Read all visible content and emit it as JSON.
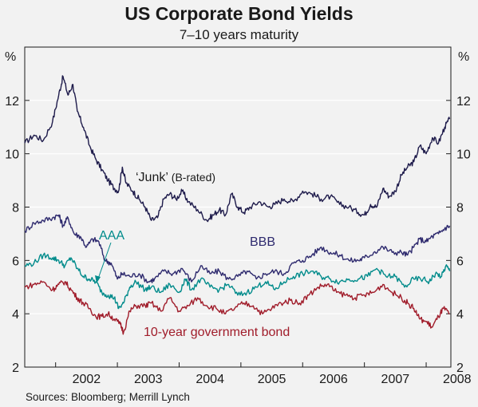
{
  "title": "US Corporate Bond Yields",
  "subtitle": "7–10 years maturity",
  "source": "Sources: Bloomberg; Merrill Lynch",
  "chart_data": {
    "type": "line",
    "y_unit_left": "%",
    "y_unit_right": "%",
    "ylim": [
      2,
      14
    ],
    "yticks": [
      2,
      4,
      6,
      8,
      10,
      12
    ],
    "xlim": [
      2001.5,
      2008.4
    ],
    "xticks": [
      {
        "label": "2002",
        "x": 2002.5
      },
      {
        "label": "2003",
        "x": 2003.5
      },
      {
        "label": "2004",
        "x": 2004.5
      },
      {
        "label": "2005",
        "x": 2005.5
      },
      {
        "label": "2006",
        "x": 2006.5
      },
      {
        "label": "2007",
        "x": 2007.5
      },
      {
        "label": "2008",
        "x": 2008.5
      }
    ],
    "grid": "horizontal",
    "series": [
      {
        "name": "‘Junk’ (B-rated)",
        "color": "#1e1b4b",
        "points": [
          [
            2001.5,
            10.4
          ],
          [
            2001.65,
            10.7
          ],
          [
            2001.8,
            10.5
          ],
          [
            2001.95,
            11.2
          ],
          [
            2002.05,
            12.2
          ],
          [
            2002.12,
            12.9
          ],
          [
            2002.2,
            12.2
          ],
          [
            2002.28,
            12.6
          ],
          [
            2002.35,
            11.6
          ],
          [
            2002.45,
            11.0
          ],
          [
            2002.55,
            10.3
          ],
          [
            2002.65,
            9.8
          ],
          [
            2002.75,
            9.4
          ],
          [
            2002.85,
            9.0
          ],
          [
            2002.95,
            8.7
          ],
          [
            2003.02,
            8.6
          ],
          [
            2003.08,
            9.5
          ],
          [
            2003.14,
            8.9
          ],
          [
            2003.25,
            8.6
          ],
          [
            2003.35,
            8.3
          ],
          [
            2003.45,
            8.0
          ],
          [
            2003.55,
            7.5
          ],
          [
            2003.65,
            7.6
          ],
          [
            2003.75,
            8.3
          ],
          [
            2003.85,
            8.5
          ],
          [
            2003.95,
            8.3
          ],
          [
            2004.05,
            8.6
          ],
          [
            2004.15,
            8.2
          ],
          [
            2004.3,
            7.9
          ],
          [
            2004.45,
            7.5
          ],
          [
            2004.55,
            7.7
          ],
          [
            2004.65,
            7.9
          ],
          [
            2004.75,
            7.7
          ],
          [
            2004.85,
            8.5
          ],
          [
            2004.95,
            8.0
          ],
          [
            2005.05,
            7.8
          ],
          [
            2005.15,
            8.0
          ],
          [
            2005.3,
            8.2
          ],
          [
            2005.45,
            8.0
          ],
          [
            2005.55,
            8.1
          ],
          [
            2005.7,
            8.3
          ],
          [
            2005.85,
            8.2
          ],
          [
            2006.0,
            8.6
          ],
          [
            2006.15,
            8.5
          ],
          [
            2006.3,
            8.3
          ],
          [
            2006.45,
            8.4
          ],
          [
            2006.6,
            8.1
          ],
          [
            2006.75,
            8.0
          ],
          [
            2006.9,
            7.8
          ],
          [
            2007.0,
            7.7
          ],
          [
            2007.1,
            8.1
          ],
          [
            2007.2,
            8.0
          ],
          [
            2007.3,
            8.7
          ],
          [
            2007.4,
            8.4
          ],
          [
            2007.5,
            8.6
          ],
          [
            2007.6,
            9.2
          ],
          [
            2007.7,
            9.5
          ],
          [
            2007.8,
            9.7
          ],
          [
            2007.9,
            10.3
          ],
          [
            2008.0,
            10.0
          ],
          [
            2008.1,
            10.6
          ],
          [
            2008.2,
            10.4
          ],
          [
            2008.3,
            11.0
          ],
          [
            2008.38,
            11.3
          ]
        ]
      },
      {
        "name": "BBB",
        "color": "#2e2a6e",
        "points": [
          [
            2001.5,
            7.1
          ],
          [
            2001.65,
            7.4
          ],
          [
            2001.8,
            7.5
          ],
          [
            2001.95,
            7.6
          ],
          [
            2002.05,
            7.7
          ],
          [
            2002.12,
            7.3
          ],
          [
            2002.2,
            7.6
          ],
          [
            2002.3,
            7.0
          ],
          [
            2002.4,
            6.9
          ],
          [
            2002.5,
            6.5
          ],
          [
            2002.6,
            6.8
          ],
          [
            2002.7,
            6.7
          ],
          [
            2002.8,
            6.0
          ],
          [
            2002.9,
            5.9
          ],
          [
            2003.0,
            5.3
          ],
          [
            2003.08,
            5.5
          ],
          [
            2003.2,
            5.4
          ],
          [
            2003.35,
            5.5
          ],
          [
            2003.5,
            5.2
          ],
          [
            2003.6,
            5.3
          ],
          [
            2003.75,
            5.6
          ],
          [
            2003.9,
            5.5
          ],
          [
            2004.05,
            5.7
          ],
          [
            2004.2,
            5.2
          ],
          [
            2004.35,
            5.8
          ],
          [
            2004.5,
            5.5
          ],
          [
            2004.65,
            5.6
          ],
          [
            2004.8,
            5.3
          ],
          [
            2004.95,
            5.4
          ],
          [
            2005.1,
            5.6
          ],
          [
            2005.25,
            5.3
          ],
          [
            2005.4,
            5.5
          ],
          [
            2005.55,
            5.6
          ],
          [
            2005.7,
            5.5
          ],
          [
            2005.85,
            5.9
          ],
          [
            2006.0,
            6.0
          ],
          [
            2006.15,
            6.2
          ],
          [
            2006.3,
            6.5
          ],
          [
            2006.45,
            6.3
          ],
          [
            2006.6,
            6.2
          ],
          [
            2006.75,
            6.0
          ],
          [
            2006.9,
            6.0
          ],
          [
            2007.0,
            6.1
          ],
          [
            2007.15,
            6.3
          ],
          [
            2007.3,
            6.5
          ],
          [
            2007.45,
            6.3
          ],
          [
            2007.6,
            6.3
          ],
          [
            2007.7,
            6.2
          ],
          [
            2007.8,
            6.5
          ],
          [
            2007.9,
            6.8
          ],
          [
            2008.0,
            6.7
          ],
          [
            2008.1,
            6.9
          ],
          [
            2008.2,
            7.0
          ],
          [
            2008.3,
            7.2
          ],
          [
            2008.38,
            7.3
          ]
        ]
      },
      {
        "name": "AAA",
        "color": "#008b8b",
        "points": [
          [
            2001.5,
            5.8
          ],
          [
            2001.65,
            5.9
          ],
          [
            2001.8,
            6.2
          ],
          [
            2001.95,
            6.1
          ],
          [
            2002.05,
            6.0
          ],
          [
            2002.15,
            5.8
          ],
          [
            2002.25,
            6.1
          ],
          [
            2002.35,
            5.7
          ],
          [
            2002.45,
            5.4
          ],
          [
            2002.55,
            5.3
          ],
          [
            2002.65,
            5.2
          ],
          [
            2002.75,
            4.8
          ],
          [
            2002.85,
            4.7
          ],
          [
            2002.95,
            4.6
          ],
          [
            2003.02,
            4.2
          ],
          [
            2003.1,
            4.4
          ],
          [
            2003.2,
            5.0
          ],
          [
            2003.3,
            5.2
          ],
          [
            2003.45,
            4.9
          ],
          [
            2003.55,
            5.0
          ],
          [
            2003.7,
            4.8
          ],
          [
            2003.85,
            5.1
          ],
          [
            2004.0,
            4.8
          ],
          [
            2004.1,
            5.3
          ],
          [
            2004.2,
            4.9
          ],
          [
            2004.35,
            5.3
          ],
          [
            2004.5,
            5.0
          ],
          [
            2004.65,
            4.9
          ],
          [
            2004.8,
            5.1
          ],
          [
            2004.95,
            4.7
          ],
          [
            2005.1,
            4.8
          ],
          [
            2005.25,
            5.0
          ],
          [
            2005.4,
            5.2
          ],
          [
            2005.55,
            4.9
          ],
          [
            2005.7,
            5.2
          ],
          [
            2005.85,
            5.4
          ],
          [
            2006.0,
            5.5
          ],
          [
            2006.15,
            5.6
          ],
          [
            2006.3,
            5.4
          ],
          [
            2006.45,
            5.3
          ],
          [
            2006.6,
            5.2
          ],
          [
            2006.75,
            5.3
          ],
          [
            2006.9,
            5.3
          ],
          [
            2007.05,
            5.4
          ],
          [
            2007.2,
            5.7
          ],
          [
            2007.35,
            5.4
          ],
          [
            2007.5,
            5.4
          ],
          [
            2007.65,
            5.0
          ],
          [
            2007.8,
            5.3
          ],
          [
            2007.95,
            5.3
          ],
          [
            2008.05,
            5.2
          ],
          [
            2008.15,
            5.5
          ],
          [
            2008.25,
            5.4
          ],
          [
            2008.32,
            5.8
          ],
          [
            2008.38,
            5.6
          ]
        ]
      },
      {
        "name": "10-year government bond",
        "color": "#a01c2a",
        "points": [
          [
            2001.5,
            5.0
          ],
          [
            2001.65,
            5.1
          ],
          [
            2001.8,
            5.2
          ],
          [
            2001.95,
            4.9
          ],
          [
            2002.05,
            5.1
          ],
          [
            2002.15,
            5.2
          ],
          [
            2002.25,
            4.9
          ],
          [
            2002.35,
            4.6
          ],
          [
            2002.45,
            4.4
          ],
          [
            2002.55,
            4.2
          ],
          [
            2002.65,
            3.9
          ],
          [
            2002.75,
            3.9
          ],
          [
            2002.85,
            4.0
          ],
          [
            2002.95,
            3.8
          ],
          [
            2003.05,
            3.6
          ],
          [
            2003.1,
            3.3
          ],
          [
            2003.2,
            4.1
          ],
          [
            2003.3,
            4.3
          ],
          [
            2003.45,
            4.3
          ],
          [
            2003.55,
            4.4
          ],
          [
            2003.7,
            4.1
          ],
          [
            2003.85,
            4.6
          ],
          [
            2004.0,
            4.1
          ],
          [
            2004.15,
            4.3
          ],
          [
            2004.3,
            4.6
          ],
          [
            2004.45,
            4.3
          ],
          [
            2004.6,
            4.2
          ],
          [
            2004.75,
            4.0
          ],
          [
            2004.9,
            4.2
          ],
          [
            2005.05,
            4.4
          ],
          [
            2005.2,
            4.3
          ],
          [
            2005.35,
            4.0
          ],
          [
            2005.5,
            4.2
          ],
          [
            2005.65,
            4.4
          ],
          [
            2005.8,
            4.5
          ],
          [
            2005.95,
            4.4
          ],
          [
            2006.1,
            4.7
          ],
          [
            2006.25,
            5.0
          ],
          [
            2006.4,
            5.1
          ],
          [
            2006.55,
            4.8
          ],
          [
            2006.7,
            4.7
          ],
          [
            2006.85,
            4.6
          ],
          [
            2007.0,
            4.7
          ],
          [
            2007.15,
            4.8
          ],
          [
            2007.3,
            5.1
          ],
          [
            2007.45,
            4.8
          ],
          [
            2007.6,
            4.6
          ],
          [
            2007.7,
            4.4
          ],
          [
            2007.8,
            4.2
          ],
          [
            2007.9,
            3.8
          ],
          [
            2008.0,
            3.7
          ],
          [
            2008.1,
            3.5
          ],
          [
            2008.2,
            3.9
          ],
          [
            2008.28,
            4.2
          ],
          [
            2008.38,
            4.0
          ]
        ]
      }
    ],
    "annotations": [
      {
        "text": "‘Junk’",
        "suffix": " (B-rated)",
        "series": "Junk"
      },
      {
        "text": "BBB"
      },
      {
        "text": "AAA"
      },
      {
        "text": "10-year government bond"
      }
    ]
  }
}
